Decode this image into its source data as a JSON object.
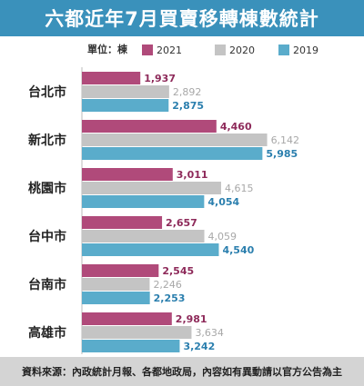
{
  "title": "六都近年7月買賣移轉棟數統計",
  "footer": "資料來源：內政統計月報、各都地政局，內容如有異動請以官方公告為主",
  "chart_data": {
    "type": "bar",
    "orientation": "horizontal",
    "unit_label": "單位：棟",
    "categories": [
      "台北市",
      "新北市",
      "桃園市",
      "台中市",
      "台南市",
      "高雄市"
    ],
    "series": [
      {
        "name": "2021",
        "color": "#b04a7a",
        "label_color": "#8e2a5a",
        "values": [
          1937,
          4460,
          3011,
          2657,
          2545,
          2981
        ],
        "labels": [
          "1,937",
          "4,460",
          "3,011",
          "2,657",
          "2,545",
          "2,981"
        ]
      },
      {
        "name": "2020",
        "color": "#c4c4c4",
        "label_color": "#a8a8a8",
        "values": [
          2892,
          6142,
          4615,
          4059,
          2246,
          3634
        ],
        "labels": [
          "2,892",
          "6,142",
          "4,615",
          "4,059",
          "2,246",
          "3,634"
        ]
      },
      {
        "name": "2019",
        "color": "#5aaccb",
        "label_color": "#2b7fae",
        "values": [
          2875,
          5985,
          4054,
          4540,
          2253,
          3242
        ],
        "labels": [
          "2,875",
          "5,985",
          "4,054",
          "4,540",
          "2,253",
          "3,242"
        ]
      }
    ],
    "legend_position": "top",
    "grid": false
  }
}
